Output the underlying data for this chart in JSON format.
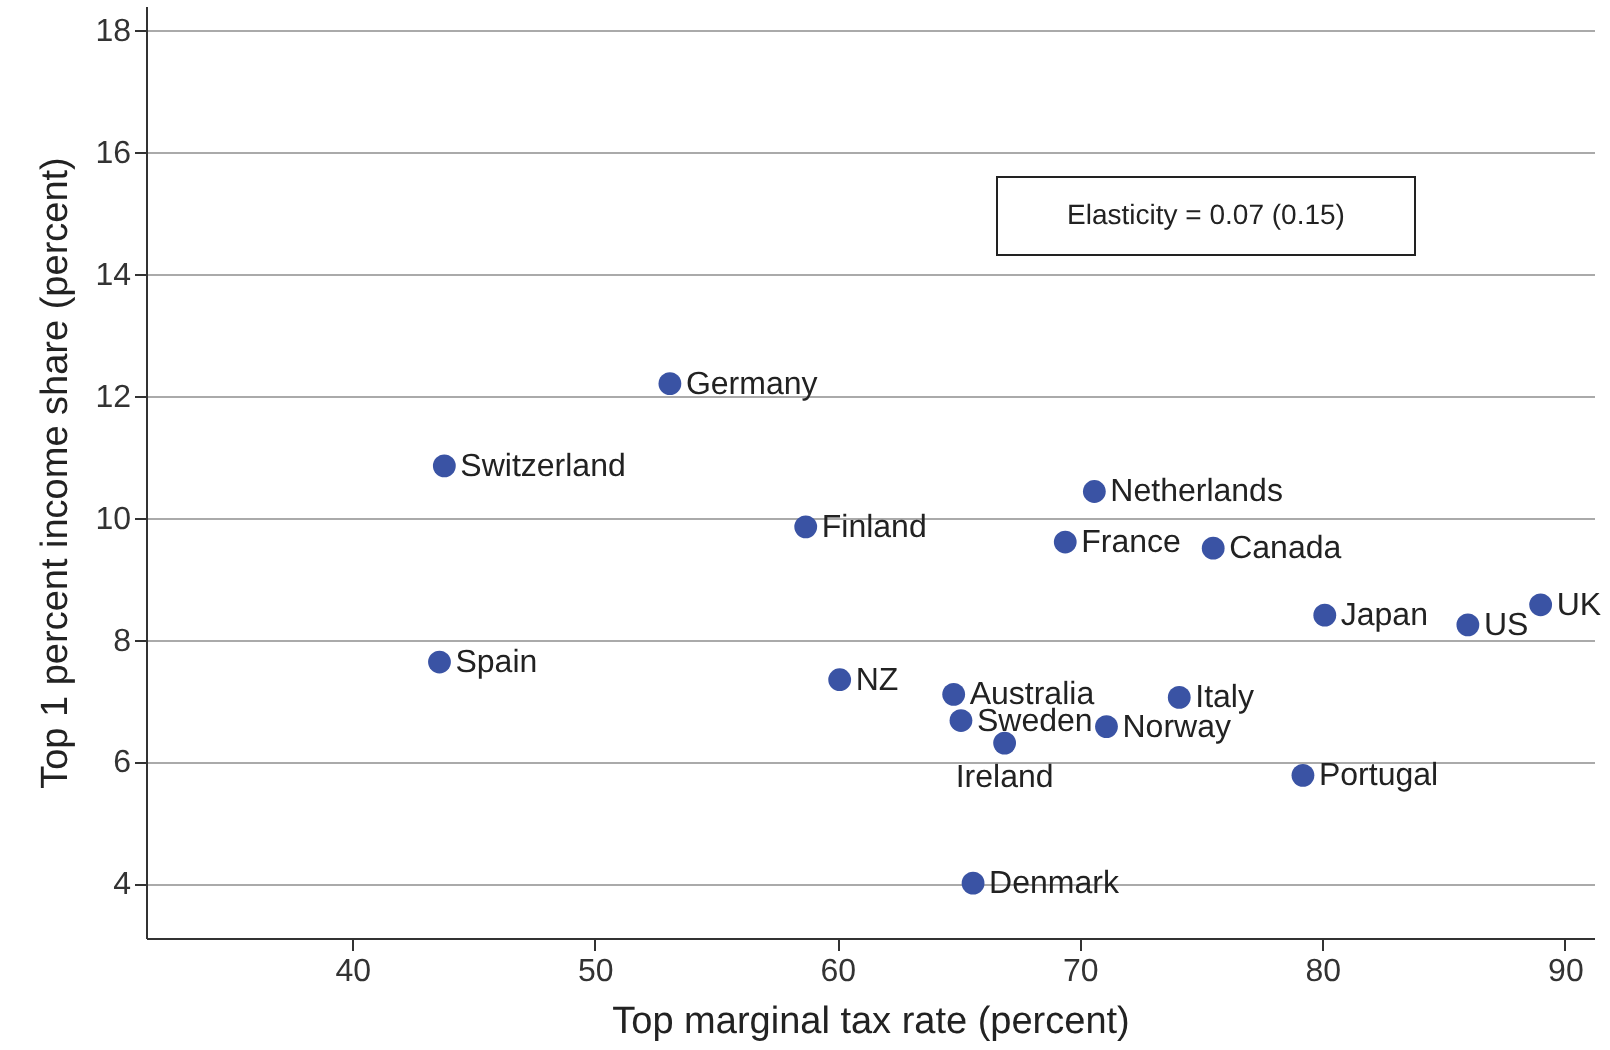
{
  "chart_data": {
    "type": "scatter",
    "xlabel": "Top marginal tax rate (percent)",
    "ylabel": "Top 1 percent income share (percent)",
    "xlim": [
      31.5,
      91.2
    ],
    "ylim": [
      3.1,
      18.4
    ],
    "xticks": [
      40,
      50,
      60,
      70,
      80,
      90
    ],
    "yticks": [
      4,
      6,
      8,
      10,
      12,
      14,
      16,
      18
    ],
    "grid": "y",
    "marker": "circle",
    "annotations": [
      "Elasticity =  0.07 (0.15)"
    ],
    "series": [
      {
        "name": "Germany",
        "color": "#3a53a4",
        "x": [
          53.1
        ],
        "values": [
          12.2
        ]
      },
      {
        "name": "Switzerland",
        "color": "#3a53a4",
        "x": [
          43.8
        ],
        "values": [
          10.85
        ]
      },
      {
        "name": "Spain",
        "color": "#3a53a4",
        "x": [
          43.6
        ],
        "values": [
          7.63
        ]
      },
      {
        "name": "Finland",
        "color": "#3a53a4",
        "x": [
          58.7
        ],
        "values": [
          9.85
        ]
      },
      {
        "name": "Netherlands",
        "color": "#3a53a4",
        "x": [
          70.6
        ],
        "values": [
          10.43
        ]
      },
      {
        "name": "France",
        "color": "#3a53a4",
        "x": [
          69.4
        ],
        "values": [
          9.6
        ]
      },
      {
        "name": "Canada",
        "color": "#3a53a4",
        "x": [
          75.5
        ],
        "values": [
          9.5
        ]
      },
      {
        "name": "Japan",
        "color": "#3a53a4",
        "x": [
          80.1
        ],
        "values": [
          8.4
        ]
      },
      {
        "name": "US",
        "color": "#3a53a4",
        "x": [
          86.0
        ],
        "values": [
          8.24
        ]
      },
      {
        "name": "UK",
        "color": "#3a53a4",
        "x": [
          89.0
        ],
        "values": [
          8.57
        ]
      },
      {
        "name": "NZ",
        "color": "#3a53a4",
        "x": [
          60.1
        ],
        "values": [
          7.34
        ]
      },
      {
        "name": "Australia",
        "color": "#3a53a4",
        "x": [
          64.8
        ],
        "values": [
          7.1
        ]
      },
      {
        "name": "Sweden",
        "color": "#3a53a4",
        "x": [
          65.1
        ],
        "values": [
          6.67
        ]
      },
      {
        "name": "Ireland",
        "color": "#3a53a4",
        "x": [
          66.9
        ],
        "values": [
          6.3
        ]
      },
      {
        "name": "Italy",
        "color": "#3a53a4",
        "x": [
          74.1
        ],
        "values": [
          7.05
        ]
      },
      {
        "name": "Norway",
        "color": "#3a53a4",
        "x": [
          71.1
        ],
        "values": [
          6.57
        ]
      },
      {
        "name": "Portugal",
        "color": "#3a53a4",
        "x": [
          79.2
        ],
        "values": [
          5.77
        ]
      },
      {
        "name": "Denmark",
        "color": "#3a53a4",
        "x": [
          65.6
        ],
        "values": [
          4.0
        ]
      }
    ]
  }
}
